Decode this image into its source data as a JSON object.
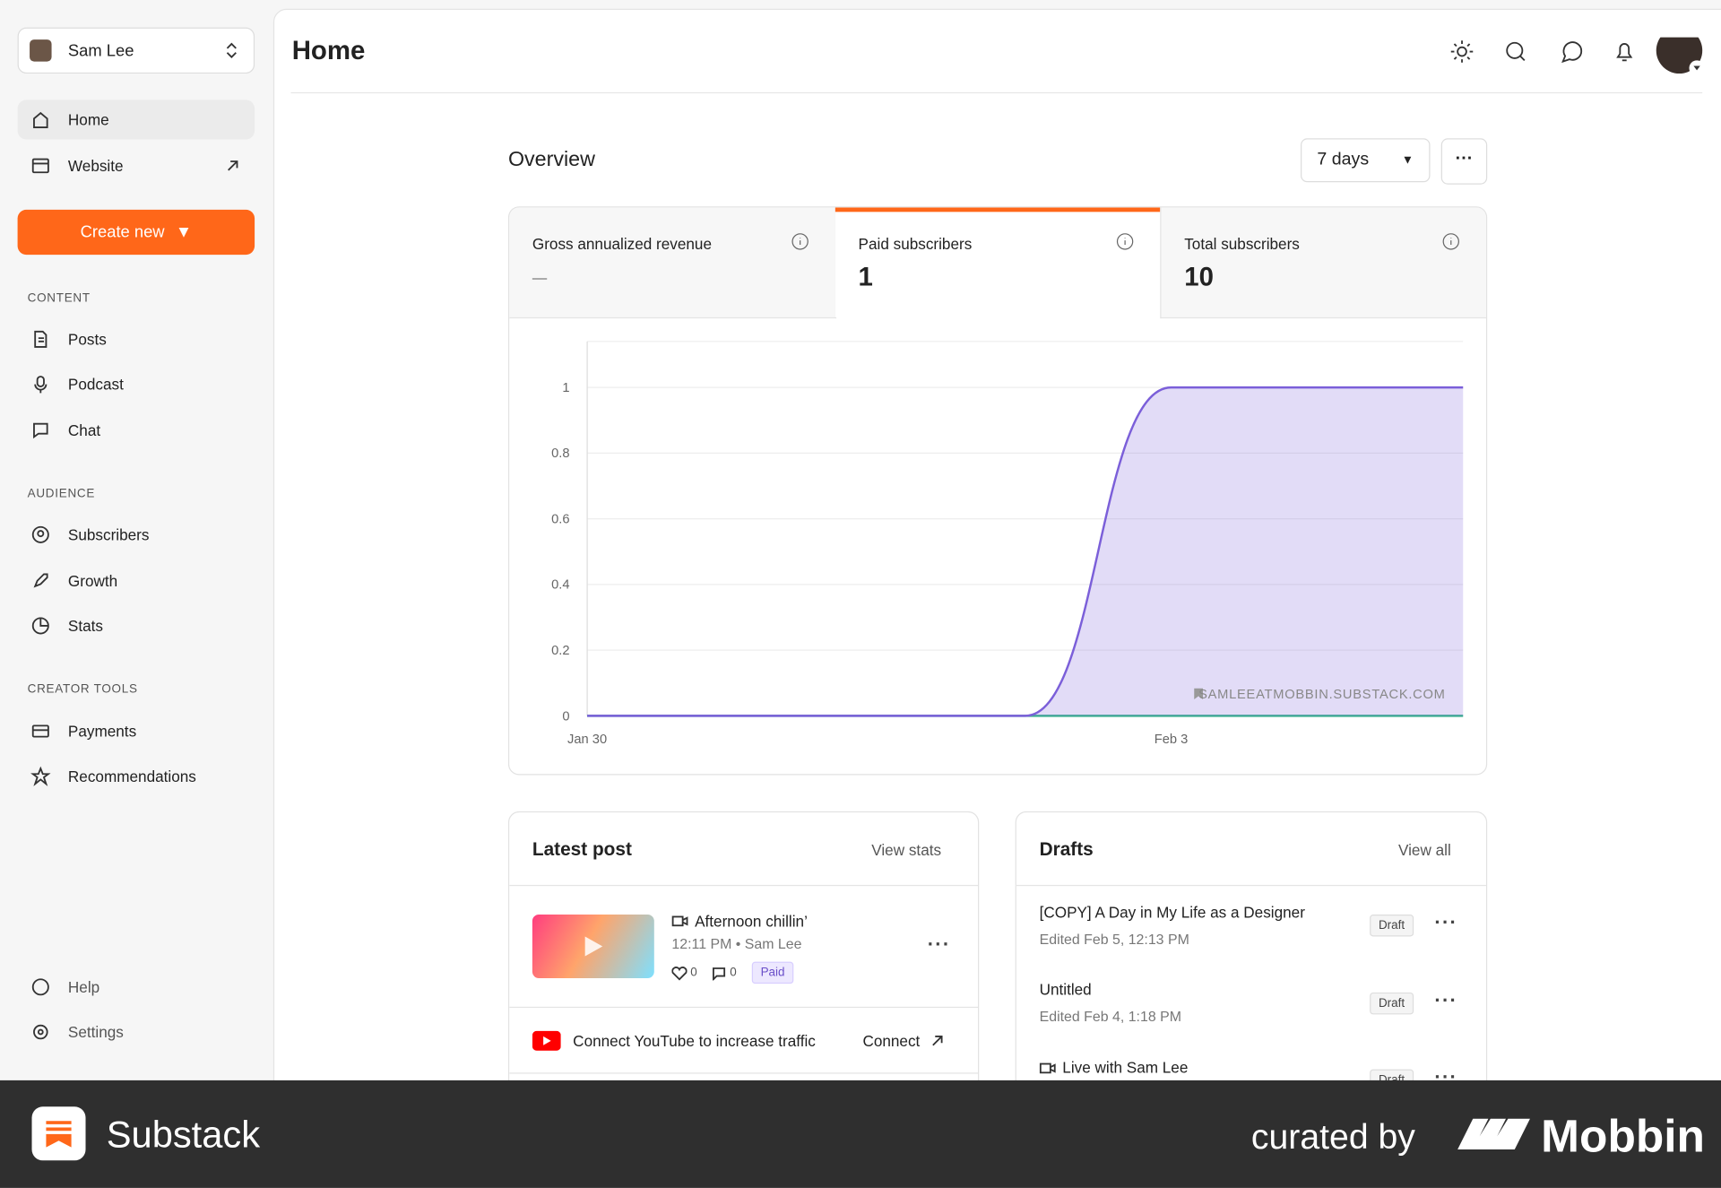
{
  "sidebar": {
    "account": "Sam Lee",
    "nav": [
      "Home",
      "Website"
    ],
    "create": "Create new",
    "sections": [
      {
        "title": "CONTENT",
        "items": [
          "Posts",
          "Podcast",
          "Chat"
        ]
      },
      {
        "title": "AUDIENCE",
        "items": [
          "Subscribers",
          "Growth",
          "Stats"
        ]
      },
      {
        "title": "CREATOR TOOLS",
        "items": [
          "Payments",
          "Recommendations"
        ]
      }
    ],
    "bottom": [
      "Help",
      "Settings"
    ]
  },
  "header": {
    "title": "Home"
  },
  "overview": {
    "title": "Overview",
    "range": "7 days",
    "metrics": [
      {
        "label": "Gross annualized revenue",
        "value": "–"
      },
      {
        "label": "Paid subscribers",
        "value": 1
      },
      {
        "label": "Total subscribers",
        "value": 10
      }
    ]
  },
  "chart_data": {
    "type": "area",
    "categories": [
      "Jan 30",
      null,
      null,
      null,
      "Feb 3",
      null,
      null
    ],
    "series": [
      {
        "color": "#7b5fd9",
        "values": [
          0,
          0,
          0,
          0,
          1,
          1,
          1
        ]
      },
      {
        "color": "#3bb08f",
        "values": [
          0,
          0,
          0,
          0,
          0,
          0,
          0
        ]
      }
    ],
    "ylim": [
      0,
      1.14
    ],
    "yticks": [
      0,
      0.2,
      0.4,
      0.6,
      0.8,
      1
    ],
    "grid": true,
    "annotation": "SAMLEEATMOBBIN.SUBSTACK.COM"
  },
  "latest_post": {
    "title": "Latest post",
    "link": "View stats",
    "post": {
      "title": "Afternoon chillin’",
      "meta": "12:11 PM • Sam Lee",
      "likes": 0,
      "comments": 0,
      "badge": "Paid"
    },
    "connect": {
      "text": "Connect YouTube to increase traffic",
      "action": "Connect"
    }
  },
  "drafts": {
    "title": "Drafts",
    "link": "View all",
    "items": [
      {
        "title": "[COPY] A Day in My Life as a Designer",
        "meta": "Edited Feb 5, 12:13 PM",
        "badge": "Draft"
      },
      {
        "title": "Untitled",
        "meta": "Edited Feb 4, 1:18 PM",
        "badge": "Draft"
      },
      {
        "title": "Live with Sam Lee",
        "badge": "Draft"
      }
    ]
  },
  "footer": {
    "brand": "Substack",
    "curated": "curated by",
    "mobbin": "Mobbin"
  }
}
